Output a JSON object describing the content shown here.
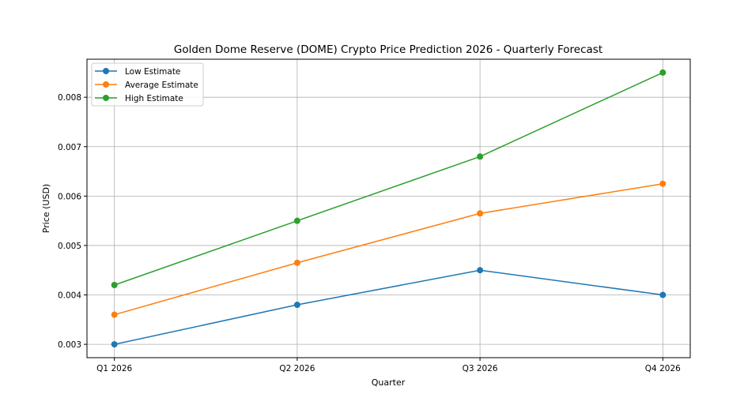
{
  "chart_data": {
    "type": "line",
    "title": "Golden Dome Reserve (DOME) Crypto Price Prediction 2026 - Quarterly Forecast",
    "xlabel": "Quarter",
    "ylabel": "Price (USD)",
    "categories": [
      "Q1 2026",
      "Q2 2026",
      "Q3 2026",
      "Q4 2026"
    ],
    "yticks": [
      "0.003",
      "0.004",
      "0.005",
      "0.006",
      "0.007",
      "0.008"
    ],
    "ylim": [
      0.00273,
      0.00877
    ],
    "grid": true,
    "legend_position": "top-left",
    "series": [
      {
        "name": "Low Estimate",
        "color": "#1f77b4",
        "values": [
          0.003,
          0.0038,
          0.0045,
          0.004
        ]
      },
      {
        "name": "Average Estimate",
        "color": "#ff7f0e",
        "values": [
          0.0036,
          0.00465,
          0.00565,
          0.00625
        ]
      },
      {
        "name": "High Estimate",
        "color": "#2ca02c",
        "values": [
          0.0042,
          0.0055,
          0.0068,
          0.0085
        ]
      }
    ]
  }
}
